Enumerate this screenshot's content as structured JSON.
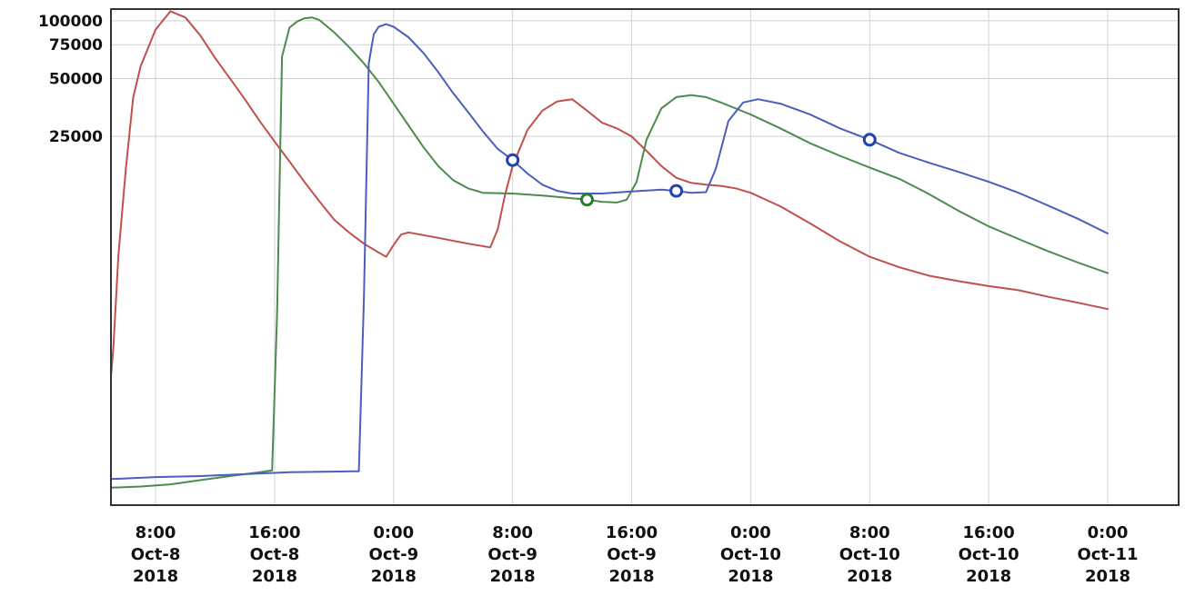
{
  "chart_data": {
    "type": "line",
    "title": "",
    "xlabel": "",
    "ylabel": "",
    "y_scale": "log",
    "grid": true,
    "legend": "none",
    "xlim": [
      "2018-10-08T05:00",
      "2018-10-11T00:00"
    ],
    "ylim": [
      300,
      115000
    ],
    "y_ticks": [
      {
        "value": 100000,
        "label": "100000"
      },
      {
        "value": 75000,
        "label": "75000"
      },
      {
        "value": 50000,
        "label": "50000"
      },
      {
        "value": 25000,
        "label": "25000"
      }
    ],
    "x_ticks": [
      {
        "value": "2018-10-08T08:00",
        "lines": [
          "8:00",
          "Oct-8",
          "2018"
        ]
      },
      {
        "value": "2018-10-08T16:00",
        "lines": [
          "16:00",
          "Oct-8",
          "2018"
        ]
      },
      {
        "value": "2018-10-09T00:00",
        "lines": [
          "0:00",
          "Oct-9",
          "2018"
        ]
      },
      {
        "value": "2018-10-09T08:00",
        "lines": [
          "8:00",
          "Oct-9",
          "2018"
        ]
      },
      {
        "value": "2018-10-09T16:00",
        "lines": [
          "16:00",
          "Oct-9",
          "2018"
        ]
      },
      {
        "value": "2018-10-10T00:00",
        "lines": [
          "0:00",
          "Oct-10",
          "2018"
        ]
      },
      {
        "value": "2018-10-10T08:00",
        "lines": [
          "8:00",
          "Oct-10",
          "2018"
        ]
      },
      {
        "value": "2018-10-10T16:00",
        "lines": [
          "16:00",
          "Oct-10",
          "2018"
        ]
      },
      {
        "value": "2018-10-11T00:00",
        "lines": [
          "0:00",
          "Oct-11",
          "2018"
        ]
      }
    ],
    "series": [
      {
        "color": "#c0504d",
        "points": [
          [
            "2018-10-08T05:00",
            1400
          ],
          [
            "2018-10-08T05:10",
            2000
          ],
          [
            "2018-10-08T05:30",
            6000
          ],
          [
            "2018-10-08T06:00",
            17000
          ],
          [
            "2018-10-08T06:30",
            40000
          ],
          [
            "2018-10-08T07:00",
            58000
          ],
          [
            "2018-10-08T08:00",
            90000
          ],
          [
            "2018-10-08T09:00",
            112000
          ],
          [
            "2018-10-08T10:00",
            104000
          ],
          [
            "2018-10-08T11:00",
            84000
          ],
          [
            "2018-10-08T12:00",
            64000
          ],
          [
            "2018-10-08T13:00",
            50000
          ],
          [
            "2018-10-08T14:00",
            39000
          ],
          [
            "2018-10-08T15:00",
            30000
          ],
          [
            "2018-10-08T16:00",
            23500
          ],
          [
            "2018-10-08T17:00",
            18500
          ],
          [
            "2018-10-08T18:00",
            14500
          ],
          [
            "2018-10-08T19:00",
            11500
          ],
          [
            "2018-10-08T20:00",
            9200
          ],
          [
            "2018-10-08T21:00",
            7900
          ],
          [
            "2018-10-08T22:00",
            6900
          ],
          [
            "2018-10-08T23:00",
            6200
          ],
          [
            "2018-10-08T23:30",
            5900
          ],
          [
            "2018-10-09T00:00",
            6800
          ],
          [
            "2018-10-09T00:30",
            7700
          ],
          [
            "2018-10-09T01:00",
            7900
          ],
          [
            "2018-10-09T03:00",
            7400
          ],
          [
            "2018-10-09T05:00",
            6900
          ],
          [
            "2018-10-09T06:30",
            6600
          ],
          [
            "2018-10-09T07:00",
            8200
          ],
          [
            "2018-10-09T07:30",
            12500
          ],
          [
            "2018-10-09T08:00",
            17500
          ],
          [
            "2018-10-09T09:00",
            27000
          ],
          [
            "2018-10-09T10:00",
            34000
          ],
          [
            "2018-10-09T11:00",
            38000
          ],
          [
            "2018-10-09T12:00",
            39000
          ],
          [
            "2018-10-09T13:00",
            34000
          ],
          [
            "2018-10-09T14:00",
            29500
          ],
          [
            "2018-10-09T15:00",
            27500
          ],
          [
            "2018-10-09T16:00",
            25000
          ],
          [
            "2018-10-09T17:00",
            21000
          ],
          [
            "2018-10-09T18:00",
            17500
          ],
          [
            "2018-10-09T19:00",
            15200
          ],
          [
            "2018-10-09T20:00",
            14300
          ],
          [
            "2018-10-09T21:00",
            14000
          ],
          [
            "2018-10-09T22:00",
            13800
          ],
          [
            "2018-10-09T23:00",
            13400
          ],
          [
            "2018-10-10T00:00",
            12700
          ],
          [
            "2018-10-10T02:00",
            10800
          ],
          [
            "2018-10-10T04:00",
            8800
          ],
          [
            "2018-10-10T06:00",
            7100
          ],
          [
            "2018-10-10T08:00",
            5900
          ],
          [
            "2018-10-10T10:00",
            5200
          ],
          [
            "2018-10-10T12:00",
            4700
          ],
          [
            "2018-10-10T14:00",
            4400
          ],
          [
            "2018-10-10T16:00",
            4150
          ],
          [
            "2018-10-10T18:00",
            3950
          ],
          [
            "2018-10-10T20:00",
            3650
          ],
          [
            "2018-10-10T22:00",
            3400
          ],
          [
            "2018-10-11T00:00",
            3150
          ]
        ],
        "markers": []
      },
      {
        "color": "#4e8a4e",
        "points": [
          [
            "2018-10-08T05:00",
            370
          ],
          [
            "2018-10-08T07:00",
            375
          ],
          [
            "2018-10-08T09:00",
            385
          ],
          [
            "2018-10-08T11:00",
            405
          ],
          [
            "2018-10-08T13:00",
            425
          ],
          [
            "2018-10-08T15:00",
            445
          ],
          [
            "2018-10-08T15:50",
            455
          ],
          [
            "2018-10-08T16:10",
            3000
          ],
          [
            "2018-10-08T16:30",
            65000
          ],
          [
            "2018-10-08T17:00",
            92000
          ],
          [
            "2018-10-08T17:30",
            99000
          ],
          [
            "2018-10-08T18:00",
            103000
          ],
          [
            "2018-10-08T18:30",
            104000
          ],
          [
            "2018-10-08T19:00",
            101000
          ],
          [
            "2018-10-08T20:00",
            87000
          ],
          [
            "2018-10-08T21:00",
            73000
          ],
          [
            "2018-10-08T22:00",
            60000
          ],
          [
            "2018-10-08T23:00",
            48000
          ],
          [
            "2018-10-09T00:00",
            37000
          ],
          [
            "2018-10-09T01:00",
            28500
          ],
          [
            "2018-10-09T02:00",
            22000
          ],
          [
            "2018-10-09T03:00",
            17500
          ],
          [
            "2018-10-09T04:00",
            14800
          ],
          [
            "2018-10-09T05:00",
            13400
          ],
          [
            "2018-10-09T06:00",
            12700
          ],
          [
            "2018-10-09T08:00",
            12600
          ],
          [
            "2018-10-09T10:00",
            12300
          ],
          [
            "2018-10-09T12:00",
            11900
          ],
          [
            "2018-10-09T13:00",
            11700
          ],
          [
            "2018-10-09T14:00",
            11400
          ],
          [
            "2018-10-09T15:00",
            11300
          ],
          [
            "2018-10-09T15:40",
            11700
          ],
          [
            "2018-10-09T16:20",
            14500
          ],
          [
            "2018-10-09T17:00",
            24000
          ],
          [
            "2018-10-09T18:00",
            35000
          ],
          [
            "2018-10-09T19:00",
            40000
          ],
          [
            "2018-10-09T20:00",
            41000
          ],
          [
            "2018-10-09T21:00",
            40000
          ],
          [
            "2018-10-09T22:00",
            37500
          ],
          [
            "2018-10-10T00:00",
            32500
          ],
          [
            "2018-10-10T02:00",
            27500
          ],
          [
            "2018-10-10T04:00",
            23000
          ],
          [
            "2018-10-10T06:00",
            19800
          ],
          [
            "2018-10-10T08:00",
            17200
          ],
          [
            "2018-10-10T10:00",
            15000
          ],
          [
            "2018-10-10T12:00",
            12500
          ],
          [
            "2018-10-10T14:00",
            10200
          ],
          [
            "2018-10-10T16:00",
            8500
          ],
          [
            "2018-10-10T18:00",
            7300
          ],
          [
            "2018-10-10T20:00",
            6300
          ],
          [
            "2018-10-10T22:00",
            5500
          ],
          [
            "2018-10-11T00:00",
            4850
          ]
        ],
        "markers": [
          [
            "2018-10-09T13:00",
            11700
          ]
        ]
      },
      {
        "color": "#4a5fbd",
        "points": [
          [
            "2018-10-08T05:00",
            410
          ],
          [
            "2018-10-08T08:00",
            420
          ],
          [
            "2018-10-08T11:00",
            425
          ],
          [
            "2018-10-08T14:00",
            435
          ],
          [
            "2018-10-08T17:00",
            445
          ],
          [
            "2018-10-08T21:00",
            450
          ],
          [
            "2018-10-08T21:40",
            450
          ],
          [
            "2018-10-08T22:00",
            3500
          ],
          [
            "2018-10-08T22:20",
            60000
          ],
          [
            "2018-10-08T22:40",
            85000
          ],
          [
            "2018-10-08T23:00",
            93000
          ],
          [
            "2018-10-08T23:30",
            96000
          ],
          [
            "2018-10-09T00:00",
            93000
          ],
          [
            "2018-10-09T01:00",
            82000
          ],
          [
            "2018-10-09T02:00",
            68000
          ],
          [
            "2018-10-09T03:00",
            54000
          ],
          [
            "2018-10-09T04:00",
            42000
          ],
          [
            "2018-10-09T05:00",
            33500
          ],
          [
            "2018-10-09T06:00",
            26500
          ],
          [
            "2018-10-09T07:00",
            21500
          ],
          [
            "2018-10-09T08:00",
            18800
          ],
          [
            "2018-10-09T09:00",
            16000
          ],
          [
            "2018-10-09T10:00",
            14000
          ],
          [
            "2018-10-09T11:00",
            13000
          ],
          [
            "2018-10-09T12:00",
            12600
          ],
          [
            "2018-10-09T14:00",
            12600
          ],
          [
            "2018-10-09T16:00",
            12900
          ],
          [
            "2018-10-09T18:00",
            13200
          ],
          [
            "2018-10-09T19:00",
            13000
          ],
          [
            "2018-10-09T20:00",
            12700
          ],
          [
            "2018-10-09T21:00",
            12800
          ],
          [
            "2018-10-09T21:40",
            17000
          ],
          [
            "2018-10-09T22:30",
            30000
          ],
          [
            "2018-10-09T23:30",
            37500
          ],
          [
            "2018-10-10T00:30",
            39000
          ],
          [
            "2018-10-10T02:00",
            37000
          ],
          [
            "2018-10-10T04:00",
            32500
          ],
          [
            "2018-10-10T06:00",
            27500
          ],
          [
            "2018-10-10T08:00",
            24000
          ],
          [
            "2018-10-10T10:00",
            20500
          ],
          [
            "2018-10-10T12:00",
            18200
          ],
          [
            "2018-10-10T14:00",
            16300
          ],
          [
            "2018-10-10T16:00",
            14500
          ],
          [
            "2018-10-10T18:00",
            12700
          ],
          [
            "2018-10-10T20:00",
            10900
          ],
          [
            "2018-10-10T22:00",
            9300
          ],
          [
            "2018-10-11T00:00",
            7800
          ]
        ],
        "markers": [
          [
            "2018-10-09T08:00",
            18800
          ],
          [
            "2018-10-09T19:00",
            13000
          ],
          [
            "2018-10-10T08:00",
            24000
          ]
        ]
      }
    ]
  }
}
